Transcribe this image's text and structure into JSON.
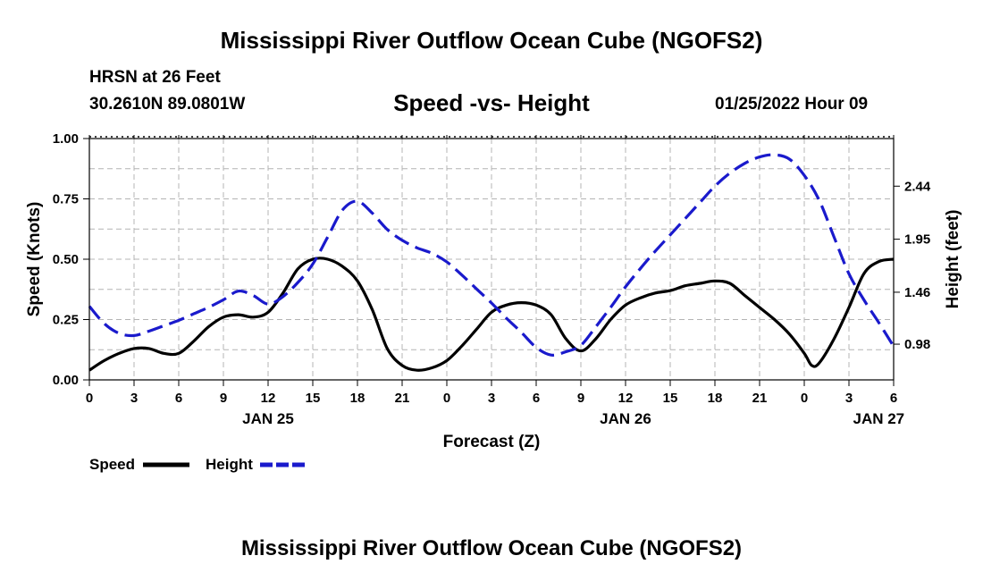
{
  "header": {
    "title": "Mississippi River Outflow Ocean Cube (NGOFS2)",
    "station": "HRSN at 26 Feet",
    "coords": "30.2610N  89.0801W",
    "datetime": "01/25/2022 Hour 09"
  },
  "footer": {
    "title": "Mississippi River Outflow Ocean Cube (NGOFS2)"
  },
  "colors": {
    "speed": "#000000",
    "height": "#1a1acc",
    "grid": "#b4b4b4"
  },
  "chart_data": {
    "type": "line",
    "title": "Speed -vs- Height",
    "xlabel": "Forecast (Z)",
    "ylabel": "Speed (Knots)",
    "y2label": "Height (feet)",
    "x_range": [
      0,
      54
    ],
    "x_ticks": [
      0,
      3,
      6,
      9,
      12,
      15,
      18,
      21,
      24,
      27,
      30,
      33,
      36,
      39,
      42,
      45,
      48,
      51,
      54
    ],
    "x_tick_labels": [
      "0",
      "3",
      "6",
      "9",
      "12",
      "15",
      "18",
      "21",
      "0",
      "3",
      "6",
      "9",
      "12",
      "15",
      "18",
      "21",
      "0",
      "3",
      "6"
    ],
    "date_labels": [
      {
        "x": 12,
        "label": "JAN 25"
      },
      {
        "x": 36,
        "label": "JAN 26"
      },
      {
        "x": 53,
        "label": "JAN 27"
      }
    ],
    "y_range": [
      0,
      1
    ],
    "y_ticks": [
      0,
      0.25,
      0.5,
      0.75,
      1.0
    ],
    "y_tick_labels": [
      "0.00",
      "0.25",
      "0.50",
      "0.75",
      "1.00"
    ],
    "y2_range": [
      0.65,
      2.88
    ],
    "y2_ticks": [
      0.98,
      1.46,
      1.95,
      2.44
    ],
    "y2_tick_labels": [
      "0.98",
      "1.46",
      "1.95",
      "2.44"
    ],
    "legend": {
      "position": "bottom-left",
      "entries": [
        "Speed",
        "Height"
      ]
    },
    "series": [
      {
        "name": "Speed",
        "axis": "left",
        "x": [
          0,
          1,
          2,
          3,
          4,
          5,
          6,
          7,
          8,
          9,
          10,
          11,
          12,
          13,
          14,
          15,
          16,
          17,
          18,
          19,
          20,
          21,
          22,
          23,
          24,
          25,
          26,
          27,
          28,
          29,
          30,
          31,
          32,
          33,
          34,
          35,
          36,
          37,
          38,
          39,
          40,
          41,
          42,
          43,
          44,
          45,
          46,
          47,
          48,
          48.5,
          49,
          50,
          51,
          52,
          53,
          54
        ],
        "values": [
          0.04,
          0.08,
          0.11,
          0.13,
          0.13,
          0.11,
          0.11,
          0.16,
          0.22,
          0.26,
          0.27,
          0.26,
          0.28,
          0.36,
          0.46,
          0.5,
          0.5,
          0.47,
          0.41,
          0.29,
          0.13,
          0.06,
          0.04,
          0.05,
          0.08,
          0.14,
          0.21,
          0.28,
          0.31,
          0.32,
          0.31,
          0.27,
          0.17,
          0.12,
          0.17,
          0.25,
          0.31,
          0.34,
          0.36,
          0.37,
          0.39,
          0.4,
          0.41,
          0.4,
          0.35,
          0.3,
          0.25,
          0.19,
          0.11,
          0.06,
          0.07,
          0.17,
          0.3,
          0.44,
          0.49,
          0.5
        ]
      },
      {
        "name": "Height",
        "axis": "right",
        "x": [
          0,
          1,
          2,
          3,
          4,
          5,
          6,
          7,
          8,
          9,
          10,
          11,
          12,
          13,
          14,
          15,
          16,
          17,
          18,
          19,
          20,
          21,
          22,
          23,
          24,
          25,
          26,
          27,
          28,
          29,
          30,
          31,
          32,
          33,
          34,
          35,
          36,
          37,
          38,
          39,
          40,
          41,
          42,
          43,
          44,
          45,
          46,
          47,
          48,
          49,
          50,
          51,
          52,
          53,
          54
        ],
        "values": [
          1.33,
          1.17,
          1.08,
          1.06,
          1.1,
          1.15,
          1.2,
          1.26,
          1.32,
          1.39,
          1.47,
          1.43,
          1.35,
          1.42,
          1.55,
          1.72,
          1.97,
          2.22,
          2.3,
          2.19,
          2.04,
          1.94,
          1.87,
          1.82,
          1.74,
          1.62,
          1.49,
          1.36,
          1.22,
          1.09,
          0.95,
          0.88,
          0.91,
          0.97,
          1.14,
          1.32,
          1.51,
          1.68,
          1.84,
          1.99,
          2.14,
          2.29,
          2.44,
          2.56,
          2.65,
          2.71,
          2.73,
          2.69,
          2.54,
          2.31,
          1.97,
          1.63,
          1.39,
          1.18,
          0.96
        ]
      }
    ]
  }
}
